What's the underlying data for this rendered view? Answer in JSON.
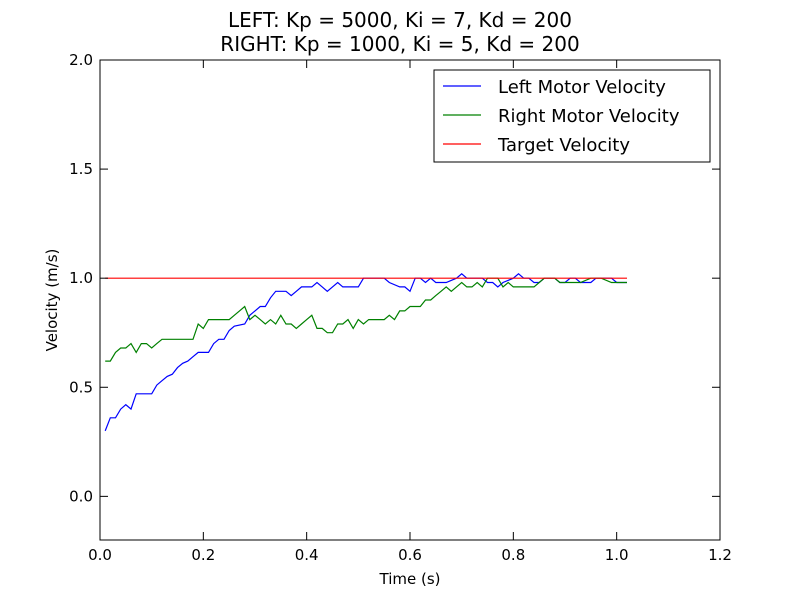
{
  "chart_data": {
    "type": "line",
    "title": "LEFT: Kp = 5000, Ki = 7, Kd = 200",
    "subtitle": "RIGHT: Kp = 1000, Ki = 5, Kd = 200",
    "xlabel": "Time (s)",
    "ylabel": "Velocity (m/s)",
    "xlim": [
      0.0,
      1.2
    ],
    "ylim": [
      -0.2,
      2.0
    ],
    "xticks": [
      "0.0",
      "0.2",
      "0.4",
      "0.6",
      "0.8",
      "1.0",
      "1.2"
    ],
    "yticks": [
      "0.0",
      "0.5",
      "1.0",
      "1.5",
      "2.0"
    ],
    "grid": false,
    "legend_position": "top-right",
    "series": [
      {
        "name": "Left Motor Velocity",
        "color": "#0000ff",
        "points": [
          [
            0.01,
            0.3
          ],
          [
            0.02,
            0.36
          ],
          [
            0.03,
            0.36
          ],
          [
            0.04,
            0.4
          ],
          [
            0.05,
            0.42
          ],
          [
            0.06,
            0.4
          ],
          [
            0.07,
            0.47
          ],
          [
            0.08,
            0.47
          ],
          [
            0.1,
            0.47
          ],
          [
            0.11,
            0.51
          ],
          [
            0.12,
            0.53
          ],
          [
            0.13,
            0.55
          ],
          [
            0.14,
            0.56
          ],
          [
            0.15,
            0.59
          ],
          [
            0.16,
            0.61
          ],
          [
            0.17,
            0.62
          ],
          [
            0.18,
            0.64
          ],
          [
            0.19,
            0.66
          ],
          [
            0.21,
            0.66
          ],
          [
            0.22,
            0.7
          ],
          [
            0.23,
            0.72
          ],
          [
            0.24,
            0.72
          ],
          [
            0.25,
            0.76
          ],
          [
            0.26,
            0.78
          ],
          [
            0.28,
            0.79
          ],
          [
            0.29,
            0.83
          ],
          [
            0.3,
            0.85
          ],
          [
            0.31,
            0.87
          ],
          [
            0.32,
            0.87
          ],
          [
            0.33,
            0.91
          ],
          [
            0.34,
            0.94
          ],
          [
            0.36,
            0.94
          ],
          [
            0.37,
            0.92
          ],
          [
            0.38,
            0.94
          ],
          [
            0.39,
            0.96
          ],
          [
            0.41,
            0.96
          ],
          [
            0.42,
            0.98
          ],
          [
            0.43,
            0.96
          ],
          [
            0.44,
            0.94
          ],
          [
            0.45,
            0.96
          ],
          [
            0.46,
            0.98
          ],
          [
            0.47,
            0.96
          ],
          [
            0.49,
            0.96
          ],
          [
            0.5,
            0.96
          ],
          [
            0.51,
            1.0
          ],
          [
            0.53,
            1.0
          ],
          [
            0.55,
            1.0
          ],
          [
            0.56,
            0.98
          ],
          [
            0.58,
            0.96
          ],
          [
            0.59,
            0.96
          ],
          [
            0.6,
            0.94
          ],
          [
            0.61,
            1.0
          ],
          [
            0.62,
            1.0
          ],
          [
            0.63,
            0.98
          ],
          [
            0.64,
            1.0
          ],
          [
            0.65,
            0.98
          ],
          [
            0.67,
            0.98
          ],
          [
            0.69,
            1.0
          ],
          [
            0.7,
            1.02
          ],
          [
            0.71,
            1.0
          ],
          [
            0.73,
            1.0
          ],
          [
            0.74,
            1.0
          ],
          [
            0.75,
            0.98
          ],
          [
            0.76,
            0.98
          ],
          [
            0.77,
            0.96
          ],
          [
            0.78,
            0.98
          ],
          [
            0.8,
            1.0
          ],
          [
            0.81,
            1.02
          ],
          [
            0.82,
            1.0
          ],
          [
            0.83,
            1.0
          ],
          [
            0.84,
            0.98
          ],
          [
            0.85,
            0.98
          ],
          [
            0.86,
            1.0
          ],
          [
            0.88,
            1.0
          ],
          [
            0.89,
            0.98
          ],
          [
            0.9,
            0.98
          ],
          [
            0.91,
            1.0
          ],
          [
            0.92,
            1.0
          ],
          [
            0.93,
            0.98
          ],
          [
            0.95,
            0.98
          ],
          [
            0.96,
            1.0
          ],
          [
            0.97,
            1.0
          ],
          [
            0.99,
            1.0
          ],
          [
            1.0,
            0.98
          ],
          [
            1.02,
            0.98
          ]
        ]
      },
      {
        "name": "Right Motor Velocity",
        "color": "#008000",
        "points": [
          [
            0.01,
            0.62
          ],
          [
            0.02,
            0.62
          ],
          [
            0.03,
            0.66
          ],
          [
            0.04,
            0.68
          ],
          [
            0.05,
            0.68
          ],
          [
            0.06,
            0.7
          ],
          [
            0.07,
            0.66
          ],
          [
            0.08,
            0.7
          ],
          [
            0.09,
            0.7
          ],
          [
            0.1,
            0.68
          ],
          [
            0.11,
            0.7
          ],
          [
            0.12,
            0.72
          ],
          [
            0.14,
            0.72
          ],
          [
            0.16,
            0.72
          ],
          [
            0.18,
            0.72
          ],
          [
            0.19,
            0.79
          ],
          [
            0.2,
            0.77
          ],
          [
            0.21,
            0.81
          ],
          [
            0.23,
            0.81
          ],
          [
            0.25,
            0.81
          ],
          [
            0.26,
            0.83
          ],
          [
            0.27,
            0.85
          ],
          [
            0.28,
            0.87
          ],
          [
            0.29,
            0.81
          ],
          [
            0.3,
            0.83
          ],
          [
            0.31,
            0.81
          ],
          [
            0.32,
            0.79
          ],
          [
            0.33,
            0.81
          ],
          [
            0.34,
            0.79
          ],
          [
            0.35,
            0.83
          ],
          [
            0.36,
            0.79
          ],
          [
            0.37,
            0.79
          ],
          [
            0.38,
            0.77
          ],
          [
            0.39,
            0.79
          ],
          [
            0.4,
            0.81
          ],
          [
            0.41,
            0.83
          ],
          [
            0.42,
            0.77
          ],
          [
            0.43,
            0.77
          ],
          [
            0.44,
            0.75
          ],
          [
            0.45,
            0.75
          ],
          [
            0.46,
            0.79
          ],
          [
            0.47,
            0.79
          ],
          [
            0.48,
            0.81
          ],
          [
            0.49,
            0.77
          ],
          [
            0.5,
            0.81
          ],
          [
            0.51,
            0.79
          ],
          [
            0.52,
            0.81
          ],
          [
            0.53,
            0.81
          ],
          [
            0.55,
            0.81
          ],
          [
            0.56,
            0.83
          ],
          [
            0.57,
            0.81
          ],
          [
            0.58,
            0.85
          ],
          [
            0.59,
            0.85
          ],
          [
            0.6,
            0.87
          ],
          [
            0.61,
            0.87
          ],
          [
            0.62,
            0.87
          ],
          [
            0.63,
            0.9
          ],
          [
            0.64,
            0.9
          ],
          [
            0.65,
            0.92
          ],
          [
            0.66,
            0.94
          ],
          [
            0.67,
            0.96
          ],
          [
            0.68,
            0.94
          ],
          [
            0.69,
            0.96
          ],
          [
            0.7,
            0.98
          ],
          [
            0.71,
            0.96
          ],
          [
            0.72,
            0.96
          ],
          [
            0.73,
            0.98
          ],
          [
            0.74,
            0.96
          ],
          [
            0.75,
            1.0
          ],
          [
            0.76,
            1.0
          ],
          [
            0.77,
            1.0
          ],
          [
            0.78,
            0.96
          ],
          [
            0.79,
            0.98
          ],
          [
            0.8,
            0.96
          ],
          [
            0.81,
            0.96
          ],
          [
            0.82,
            0.96
          ],
          [
            0.84,
            0.96
          ],
          [
            0.85,
            0.98
          ],
          [
            0.86,
            1.0
          ],
          [
            0.87,
            1.0
          ],
          [
            0.88,
            1.0
          ],
          [
            0.89,
            0.98
          ],
          [
            0.9,
            0.98
          ],
          [
            0.91,
            0.98
          ],
          [
            0.93,
            0.98
          ],
          [
            0.95,
            1.0
          ],
          [
            0.97,
            1.0
          ],
          [
            0.99,
            0.98
          ],
          [
            1.0,
            0.98
          ],
          [
            1.02,
            0.98
          ]
        ]
      },
      {
        "name": "Target Velocity",
        "color": "#ff0000",
        "points": [
          [
            0.01,
            1.0
          ],
          [
            1.02,
            1.0
          ]
        ]
      }
    ]
  }
}
